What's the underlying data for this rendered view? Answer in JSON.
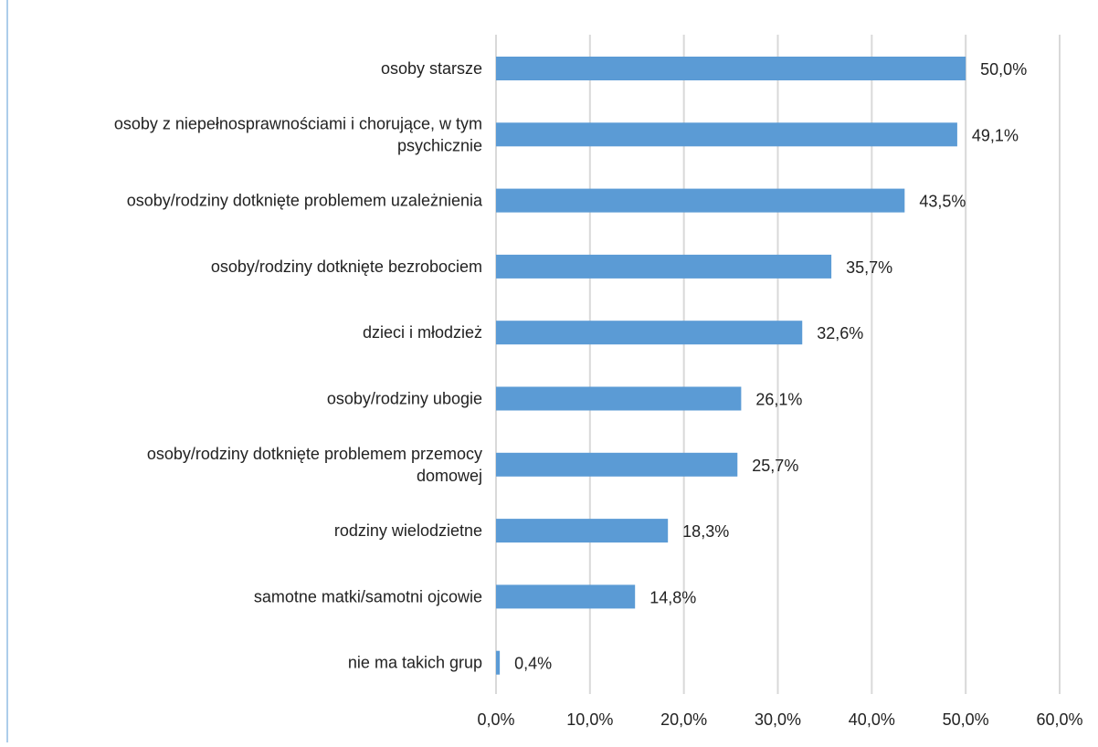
{
  "chart_data": {
    "type": "bar",
    "orientation": "horizontal",
    "title": "",
    "xlabel": "",
    "ylabel": "",
    "categories": [
      [
        "osoby starsze"
      ],
      [
        "osoby z niepełnosprawnościami i chorujące, w tym",
        "psychicznie"
      ],
      [
        "osoby/rodziny dotknięte problemem uzależnienia"
      ],
      [
        "osoby/rodziny dotknięte bezrobociem"
      ],
      [
        "dzieci i młodzież"
      ],
      [
        "osoby/rodziny ubogie"
      ],
      [
        "osoby/rodziny dotknięte problemem przemocy",
        "domowej"
      ],
      [
        "rodziny wielodzietne"
      ],
      [
        "samotne matki/samotni ojcowie"
      ],
      [
        "nie ma takich grup"
      ]
    ],
    "values": [
      50.0,
      49.1,
      43.5,
      35.7,
      32.6,
      26.1,
      25.7,
      18.3,
      14.8,
      0.4
    ],
    "value_labels": [
      "50,0%",
      "49,1%",
      "43,5%",
      "35,7%",
      "32,6%",
      "26,1%",
      "25,7%",
      "18,3%",
      "14,8%",
      "0,4%"
    ],
    "xlim": [
      0,
      60
    ],
    "x_ticks": [
      0,
      10,
      20,
      30,
      40,
      50,
      60
    ],
    "x_tick_labels": [
      "0,0%",
      "10,0%",
      "20,0%",
      "30,0%",
      "40,0%",
      "50,0%",
      "60,0%"
    ],
    "grid": true,
    "legend": "none",
    "colors": {
      "bar": "#5b9bd5",
      "grid": "#d9d9d9",
      "frame_line": "#5b9bd5",
      "text": "#222222"
    }
  }
}
